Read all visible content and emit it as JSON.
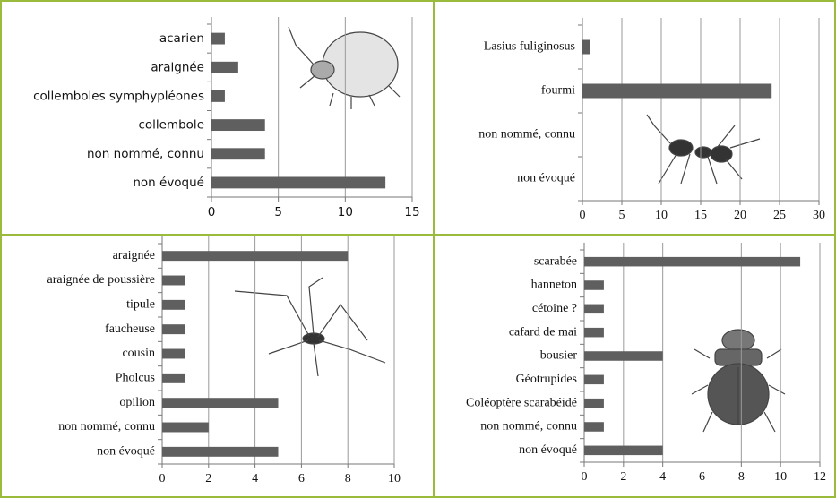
{
  "chart_data": [
    {
      "type": "bar",
      "orientation": "horizontal",
      "grid": true,
      "color": "#5f5f5f",
      "categories": [
        "acarien",
        "araignée",
        "collemboles symphypléones",
        "collembole",
        "non nommé, connu",
        "non évoqué"
      ],
      "values": [
        1,
        2,
        1,
        4,
        4,
        13
      ],
      "xlim": [
        0,
        15
      ],
      "xticks": [
        0,
        5,
        10,
        15
      ]
    },
    {
      "type": "bar",
      "orientation": "horizontal",
      "grid": true,
      "color": "#5f5f5f",
      "categories": [
        "Lasius fuliginosus",
        "fourmi",
        "non nommé, connu",
        "non évoqué"
      ],
      "values": [
        1,
        24,
        0,
        0
      ],
      "xlim": [
        0,
        30
      ],
      "xticks": [
        0,
        5,
        10,
        15,
        20,
        25,
        30
      ]
    },
    {
      "type": "bar",
      "orientation": "horizontal",
      "grid": true,
      "color": "#5f5f5f",
      "categories": [
        "araignée",
        "araignée de poussière",
        "tipule",
        "faucheuse",
        "cousin",
        "Pholcus",
        "opilion",
        "non nommé, connu",
        "non évoqué"
      ],
      "values": [
        8,
        1,
        1,
        1,
        1,
        1,
        5,
        2,
        5
      ],
      "xlim": [
        0,
        10
      ],
      "xticks": [
        0,
        2,
        4,
        6,
        8,
        10
      ]
    },
    {
      "type": "bar",
      "orientation": "horizontal",
      "grid": true,
      "color": "#5f5f5f",
      "categories": [
        "scarabée",
        "hanneton",
        "cétoine ?",
        "cafard de mai",
        "bousier",
        "Géotrupides",
        "Coléoptère scarabéidé",
        "non nommé, connu",
        "non évoqué"
      ],
      "values": [
        11,
        1,
        1,
        1,
        4,
        1,
        1,
        1,
        4
      ],
      "xlim": [
        0,
        12
      ],
      "xticks": [
        0,
        2,
        4,
        6,
        8,
        10,
        12
      ]
    }
  ]
}
